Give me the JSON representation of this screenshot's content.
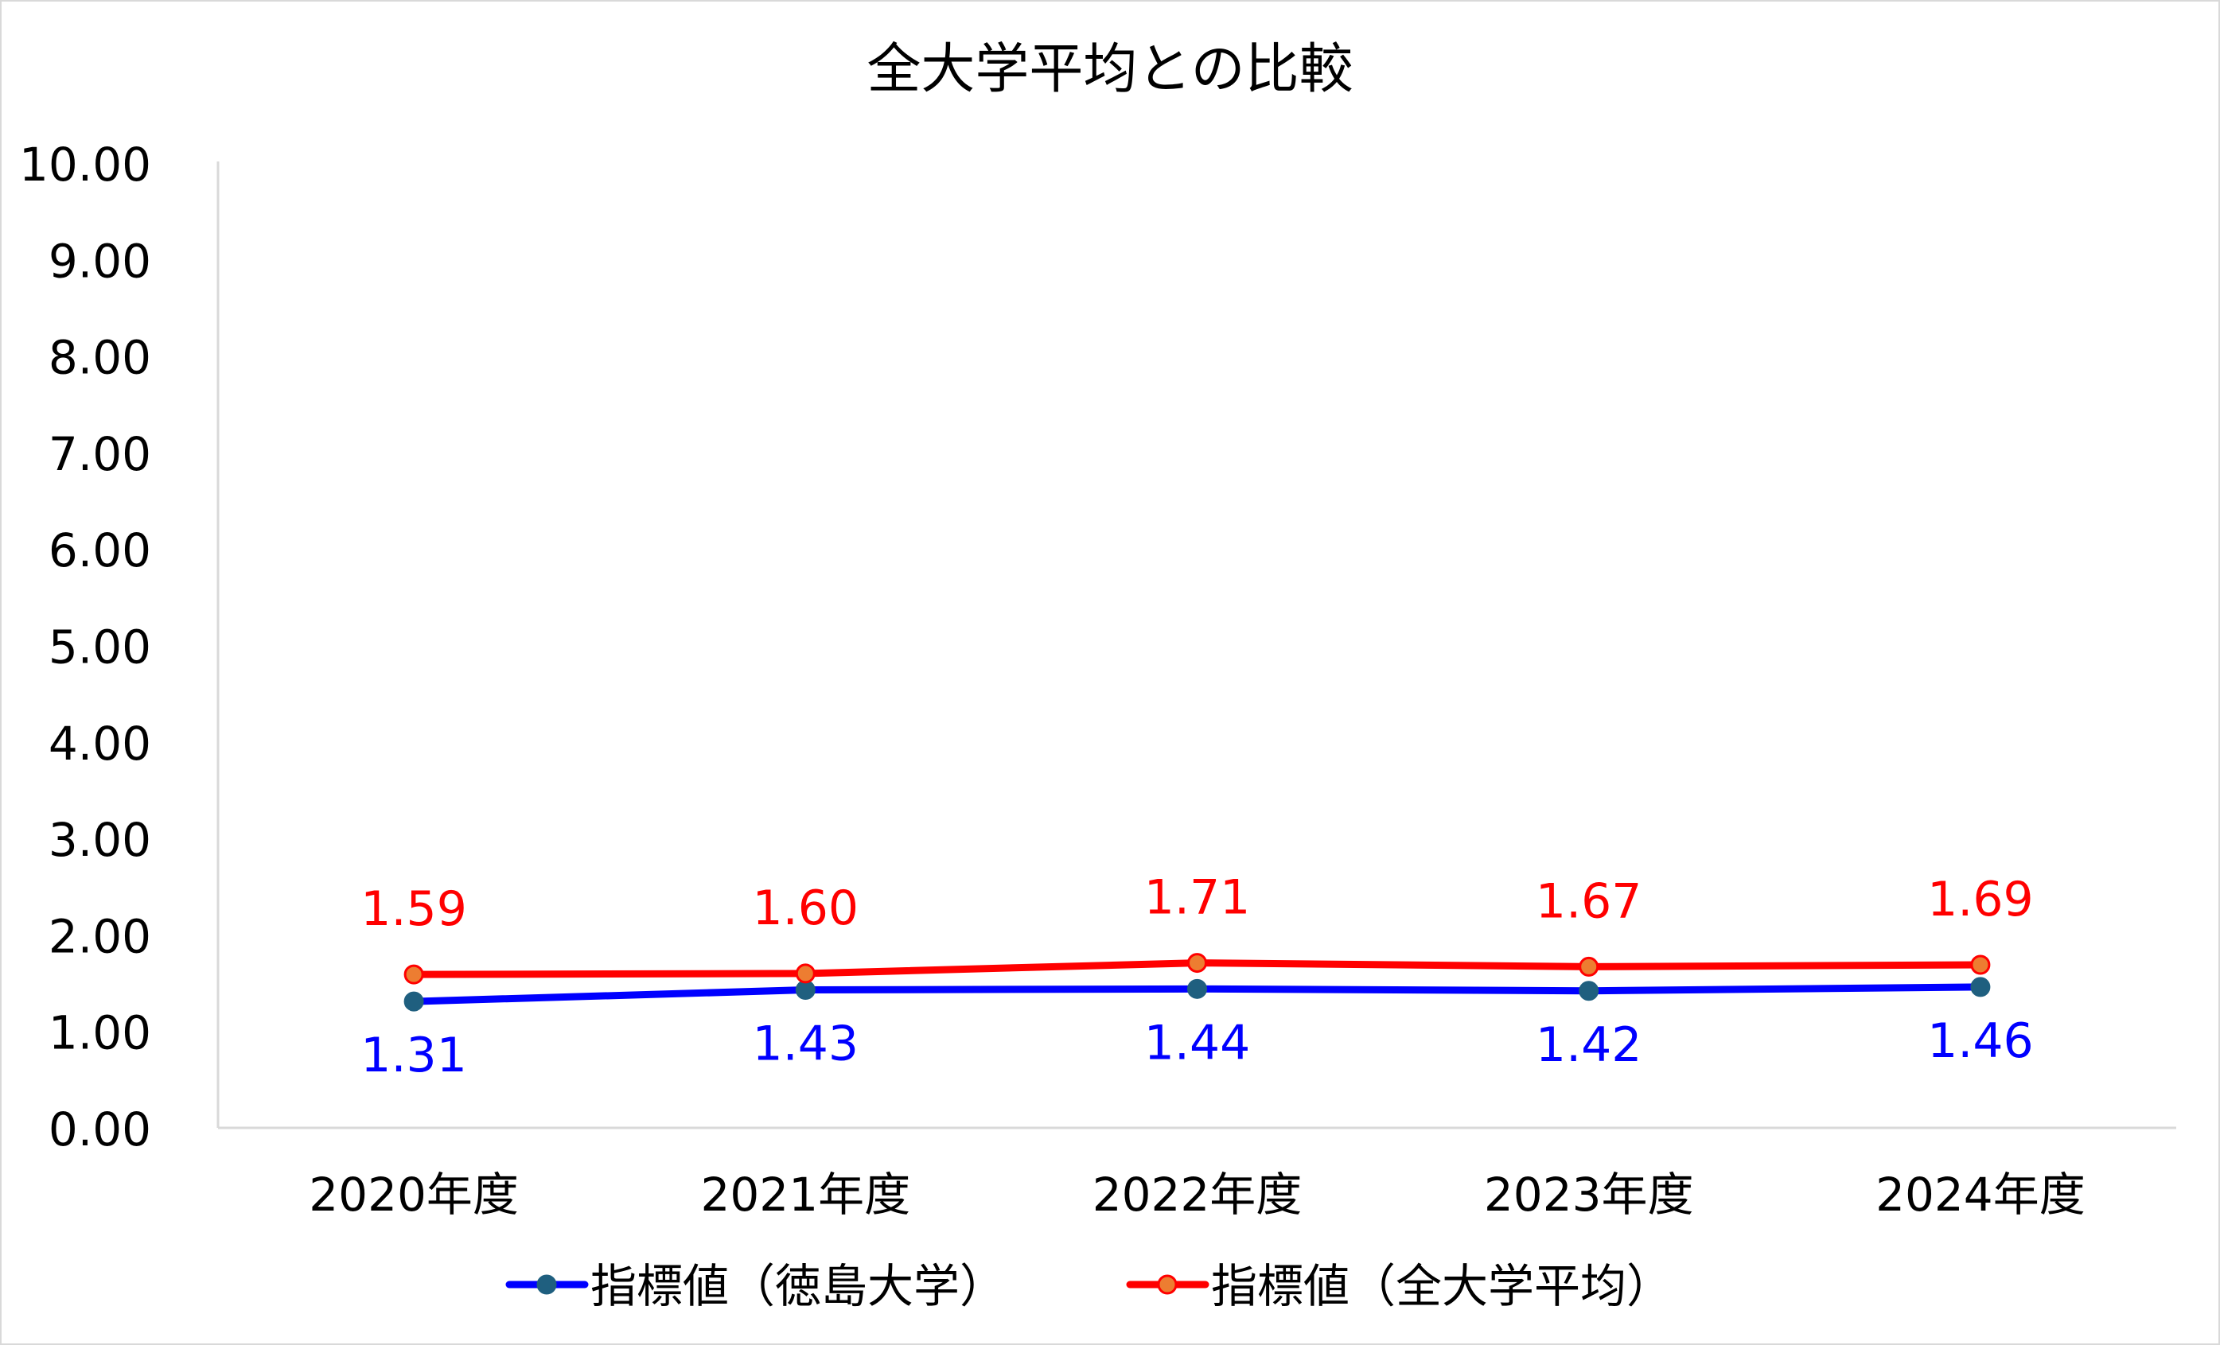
{
  "chart_data": {
    "type": "line",
    "title": "全大学平均との比較",
    "categories": [
      "2020年度",
      "2021年度",
      "2022年度",
      "2023年度",
      "2024年度"
    ],
    "ylim": [
      0,
      10
    ],
    "yticks": [
      "0.00",
      "1.00",
      "2.00",
      "3.00",
      "4.00",
      "5.00",
      "6.00",
      "7.00",
      "8.00",
      "9.00",
      "10.00"
    ],
    "grid": false,
    "legend_position": "bottom",
    "series": [
      {
        "name": "指標値（徳島大学）",
        "values": [
          1.31,
          1.43,
          1.44,
          1.42,
          1.46
        ],
        "labels": [
          "1.31",
          "1.43",
          "1.44",
          "1.42",
          "1.46"
        ],
        "line_color": "#0000FF",
        "marker_color": "#1F5F7F",
        "label_color": "#0000FF",
        "label_position": "below"
      },
      {
        "name": "指標値（全大学平均）",
        "values": [
          1.59,
          1.6,
          1.71,
          1.67,
          1.69
        ],
        "labels": [
          "1.59",
          "1.60",
          "1.71",
          "1.67",
          "1.69"
        ],
        "line_color": "#FF0000",
        "marker_color": "#ED7D31",
        "label_color": "#FF0000",
        "label_position": "above"
      }
    ]
  }
}
